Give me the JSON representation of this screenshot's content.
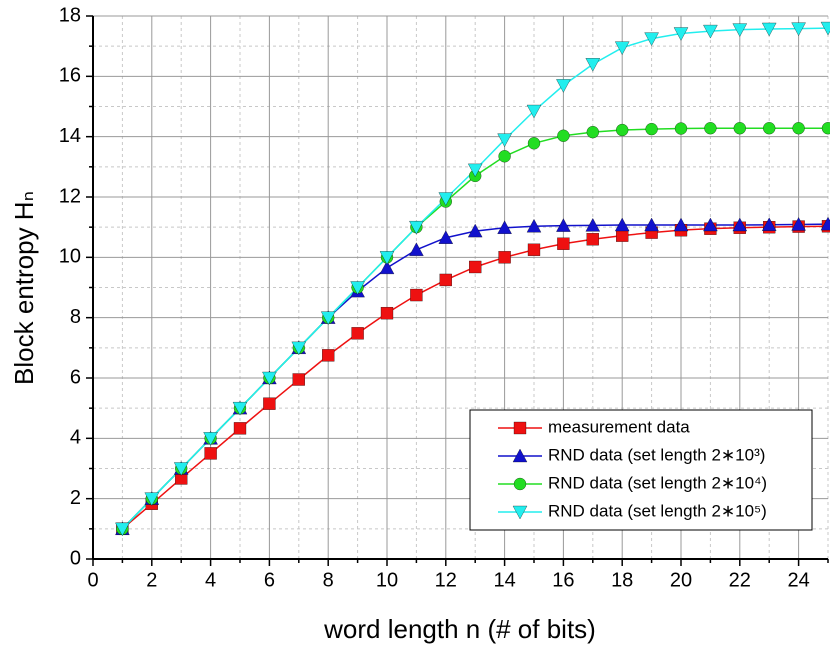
{
  "chart_data": {
    "type": "line",
    "xlabel": "word length n (# of bits)",
    "ylabel": "Block entropy Hₙ",
    "x": [
      1,
      2,
      3,
      4,
      5,
      6,
      7,
      8,
      9,
      10,
      11,
      12,
      13,
      14,
      15,
      16,
      17,
      18,
      19,
      20,
      21,
      22,
      23,
      24,
      25
    ],
    "series": [
      {
        "name": "measurement data",
        "color": "#ee1111",
        "marker": "square",
        "values": [
          1.0,
          1.83,
          2.67,
          3.5,
          4.33,
          5.15,
          5.95,
          6.75,
          7.48,
          8.15,
          8.75,
          9.25,
          9.68,
          10.0,
          10.25,
          10.45,
          10.6,
          10.72,
          10.82,
          10.9,
          10.95,
          10.98,
          11.0,
          11.02,
          11.03
        ]
      },
      {
        "name": "RND data (set length 2∗10³)",
        "color": "#1111cc",
        "marker": "triangle-up",
        "values": [
          1,
          2,
          3,
          4,
          5,
          6,
          7,
          8,
          8.88,
          9.65,
          10.25,
          10.65,
          10.87,
          10.98,
          11.03,
          11.05,
          11.06,
          11.07,
          11.07,
          11.07,
          11.07,
          11.07,
          11.08,
          11.09,
          11.1
        ]
      },
      {
        "name": "RND data (set length 2∗10⁴)",
        "color": "#22dd22",
        "marker": "circle",
        "values": [
          1,
          2,
          3,
          4,
          5,
          6,
          7,
          8,
          9,
          10,
          11,
          11.85,
          12.7,
          13.35,
          13.78,
          14.03,
          14.15,
          14.22,
          14.25,
          14.27,
          14.28,
          14.28,
          14.28,
          14.28,
          14.28
        ]
      },
      {
        "name": "RND data (set length 2∗10⁵)",
        "color": "#22eeee",
        "marker": "triangle-down",
        "values": [
          1,
          2,
          3,
          4,
          5,
          6,
          7,
          8,
          9,
          10,
          11,
          11.95,
          12.9,
          13.9,
          14.85,
          15.7,
          16.4,
          16.95,
          17.25,
          17.42,
          17.5,
          17.55,
          17.57,
          17.58,
          17.6
        ]
      }
    ],
    "xlim": [
      0,
      25
    ],
    "ylim": [
      0,
      18
    ],
    "xticks": [
      0,
      2,
      4,
      6,
      8,
      10,
      12,
      14,
      16,
      18,
      20,
      22,
      24
    ],
    "yticks": [
      0,
      2,
      4,
      6,
      8,
      10,
      12,
      14,
      16,
      18
    ],
    "xminorticks": [
      1,
      3,
      5,
      7,
      9,
      11,
      13,
      15,
      17,
      19,
      21,
      23,
      25
    ],
    "yminorticks": [
      1,
      3,
      5,
      7,
      9,
      11,
      13,
      15,
      17
    ],
    "grid": true,
    "legend": "lower right"
  }
}
